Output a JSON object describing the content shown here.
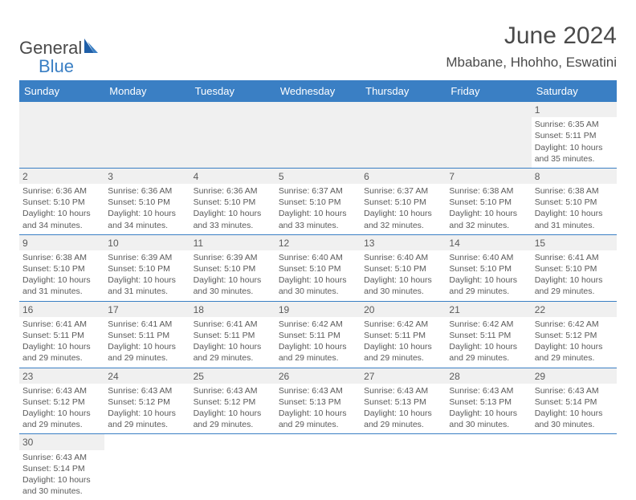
{
  "logo": {
    "general": "General",
    "blue": "Blue"
  },
  "title": "June 2024",
  "location": "Mbabane, Hhohho, Eswatini",
  "colors": {
    "header_bg": "#3a7fc4",
    "header_text": "#ffffff",
    "daynum_bg": "#f0f0f0",
    "body_text": "#5a5a5a",
    "border": "#3a7fc4",
    "page_bg": "#ffffff",
    "logo_blue": "#3a7fc4",
    "logo_grey": "#4a4a4a"
  },
  "typography": {
    "title_fontsize": 30,
    "location_fontsize": 17,
    "weekday_fontsize": 13,
    "daynum_fontsize": 12,
    "cell_fontsize": 10.5,
    "logo_fontsize": 22
  },
  "weekdays": [
    "Sunday",
    "Monday",
    "Tuesday",
    "Wednesday",
    "Thursday",
    "Friday",
    "Saturday"
  ],
  "weeks": [
    [
      null,
      null,
      null,
      null,
      null,
      null,
      {
        "day": "1",
        "sunrise": "Sunrise: 6:35 AM",
        "sunset": "Sunset: 5:11 PM",
        "daylight": "Daylight: 10 hours and 35 minutes."
      }
    ],
    [
      {
        "day": "2",
        "sunrise": "Sunrise: 6:36 AM",
        "sunset": "Sunset: 5:10 PM",
        "daylight": "Daylight: 10 hours and 34 minutes."
      },
      {
        "day": "3",
        "sunrise": "Sunrise: 6:36 AM",
        "sunset": "Sunset: 5:10 PM",
        "daylight": "Daylight: 10 hours and 34 minutes."
      },
      {
        "day": "4",
        "sunrise": "Sunrise: 6:36 AM",
        "sunset": "Sunset: 5:10 PM",
        "daylight": "Daylight: 10 hours and 33 minutes."
      },
      {
        "day": "5",
        "sunrise": "Sunrise: 6:37 AM",
        "sunset": "Sunset: 5:10 PM",
        "daylight": "Daylight: 10 hours and 33 minutes."
      },
      {
        "day": "6",
        "sunrise": "Sunrise: 6:37 AM",
        "sunset": "Sunset: 5:10 PM",
        "daylight": "Daylight: 10 hours and 32 minutes."
      },
      {
        "day": "7",
        "sunrise": "Sunrise: 6:38 AM",
        "sunset": "Sunset: 5:10 PM",
        "daylight": "Daylight: 10 hours and 32 minutes."
      },
      {
        "day": "8",
        "sunrise": "Sunrise: 6:38 AM",
        "sunset": "Sunset: 5:10 PM",
        "daylight": "Daylight: 10 hours and 31 minutes."
      }
    ],
    [
      {
        "day": "9",
        "sunrise": "Sunrise: 6:38 AM",
        "sunset": "Sunset: 5:10 PM",
        "daylight": "Daylight: 10 hours and 31 minutes."
      },
      {
        "day": "10",
        "sunrise": "Sunrise: 6:39 AM",
        "sunset": "Sunset: 5:10 PM",
        "daylight": "Daylight: 10 hours and 31 minutes."
      },
      {
        "day": "11",
        "sunrise": "Sunrise: 6:39 AM",
        "sunset": "Sunset: 5:10 PM",
        "daylight": "Daylight: 10 hours and 30 minutes."
      },
      {
        "day": "12",
        "sunrise": "Sunrise: 6:40 AM",
        "sunset": "Sunset: 5:10 PM",
        "daylight": "Daylight: 10 hours and 30 minutes."
      },
      {
        "day": "13",
        "sunrise": "Sunrise: 6:40 AM",
        "sunset": "Sunset: 5:10 PM",
        "daylight": "Daylight: 10 hours and 30 minutes."
      },
      {
        "day": "14",
        "sunrise": "Sunrise: 6:40 AM",
        "sunset": "Sunset: 5:10 PM",
        "daylight": "Daylight: 10 hours and 29 minutes."
      },
      {
        "day": "15",
        "sunrise": "Sunrise: 6:41 AM",
        "sunset": "Sunset: 5:10 PM",
        "daylight": "Daylight: 10 hours and 29 minutes."
      }
    ],
    [
      {
        "day": "16",
        "sunrise": "Sunrise: 6:41 AM",
        "sunset": "Sunset: 5:11 PM",
        "daylight": "Daylight: 10 hours and 29 minutes."
      },
      {
        "day": "17",
        "sunrise": "Sunrise: 6:41 AM",
        "sunset": "Sunset: 5:11 PM",
        "daylight": "Daylight: 10 hours and 29 minutes."
      },
      {
        "day": "18",
        "sunrise": "Sunrise: 6:41 AM",
        "sunset": "Sunset: 5:11 PM",
        "daylight": "Daylight: 10 hours and 29 minutes."
      },
      {
        "day": "19",
        "sunrise": "Sunrise: 6:42 AM",
        "sunset": "Sunset: 5:11 PM",
        "daylight": "Daylight: 10 hours and 29 minutes."
      },
      {
        "day": "20",
        "sunrise": "Sunrise: 6:42 AM",
        "sunset": "Sunset: 5:11 PM",
        "daylight": "Daylight: 10 hours and 29 minutes."
      },
      {
        "day": "21",
        "sunrise": "Sunrise: 6:42 AM",
        "sunset": "Sunset: 5:11 PM",
        "daylight": "Daylight: 10 hours and 29 minutes."
      },
      {
        "day": "22",
        "sunrise": "Sunrise: 6:42 AM",
        "sunset": "Sunset: 5:12 PM",
        "daylight": "Daylight: 10 hours and 29 minutes."
      }
    ],
    [
      {
        "day": "23",
        "sunrise": "Sunrise: 6:43 AM",
        "sunset": "Sunset: 5:12 PM",
        "daylight": "Daylight: 10 hours and 29 minutes."
      },
      {
        "day": "24",
        "sunrise": "Sunrise: 6:43 AM",
        "sunset": "Sunset: 5:12 PM",
        "daylight": "Daylight: 10 hours and 29 minutes."
      },
      {
        "day": "25",
        "sunrise": "Sunrise: 6:43 AM",
        "sunset": "Sunset: 5:12 PM",
        "daylight": "Daylight: 10 hours and 29 minutes."
      },
      {
        "day": "26",
        "sunrise": "Sunrise: 6:43 AM",
        "sunset": "Sunset: 5:13 PM",
        "daylight": "Daylight: 10 hours and 29 minutes."
      },
      {
        "day": "27",
        "sunrise": "Sunrise: 6:43 AM",
        "sunset": "Sunset: 5:13 PM",
        "daylight": "Daylight: 10 hours and 29 minutes."
      },
      {
        "day": "28",
        "sunrise": "Sunrise: 6:43 AM",
        "sunset": "Sunset: 5:13 PM",
        "daylight": "Daylight: 10 hours and 30 minutes."
      },
      {
        "day": "29",
        "sunrise": "Sunrise: 6:43 AM",
        "sunset": "Sunset: 5:14 PM",
        "daylight": "Daylight: 10 hours and 30 minutes."
      }
    ],
    [
      {
        "day": "30",
        "sunrise": "Sunrise: 6:43 AM",
        "sunset": "Sunset: 5:14 PM",
        "daylight": "Daylight: 10 hours and 30 minutes."
      },
      null,
      null,
      null,
      null,
      null,
      null
    ]
  ]
}
